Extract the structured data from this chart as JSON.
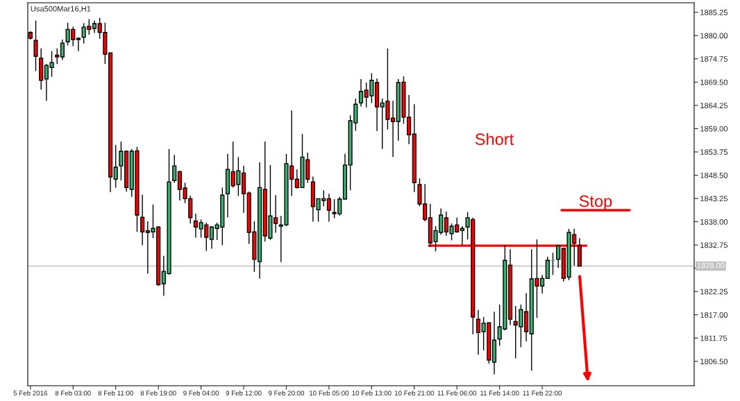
{
  "chart_data": {
    "type": "candlestick",
    "title": "Usa500Mar16,H1",
    "categories": [
      "5 Feb 2016",
      null,
      null,
      null,
      null,
      null,
      null,
      null,
      "8 Feb 03:00",
      null,
      null,
      null,
      null,
      null,
      null,
      null,
      "8 Feb 11:00",
      null,
      null,
      null,
      null,
      null,
      null,
      null,
      "8 Feb 19:00",
      null,
      null,
      null,
      null,
      null,
      null,
      null,
      "9 Feb 04:00",
      null,
      null,
      null,
      null,
      null,
      null,
      null,
      "9 Feb 12:00",
      null,
      null,
      null,
      null,
      null,
      null,
      null,
      "9 Feb 20:00",
      null,
      null,
      null,
      null,
      null,
      null,
      null,
      "10 Feb 05:00",
      null,
      null,
      null,
      null,
      null,
      null,
      null,
      "10 Feb 13:00",
      null,
      null,
      null,
      null,
      null,
      null,
      null,
      "10 Feb 21:00",
      null,
      null,
      null,
      null,
      null,
      null,
      null,
      "11 Feb 06:00",
      null,
      null,
      null,
      null,
      null,
      null,
      null,
      "11 Feb 14:00",
      null,
      null,
      null,
      null,
      null,
      null,
      null,
      "11 Feb 22:00",
      null,
      null,
      null,
      null,
      null,
      null,
      null,
      null,
      null,
      null,
      null,
      null,
      null,
      null,
      null,
      null,
      null,
      null,
      null,
      null,
      null,
      null,
      null,
      null,
      null,
      null,
      null,
      null
    ],
    "ohlc": [
      [
        1880.7,
        1881.0,
        1879.1,
        1879.4
      ],
      [
        1878.9,
        1883.4,
        1872.0,
        1875.3
      ],
      [
        1874.9,
        1877.1,
        1867.8,
        1869.9
      ],
      [
        1870.2,
        1873.6,
        1865.3,
        1873.3
      ],
      [
        1872.8,
        1876.5,
        1870.7,
        1873.9
      ],
      [
        1875.6,
        1877.1,
        1873.6,
        1875.2
      ],
      [
        1875.2,
        1879.1,
        1874.5,
        1878.3
      ],
      [
        1878.6,
        1882.9,
        1877.8,
        1881.4
      ],
      [
        1881.4,
        1882.0,
        1877.6,
        1879.1
      ],
      [
        1879.1,
        1879.6,
        1876.5,
        1879.4
      ],
      [
        1879.6,
        1882.8,
        1878.2,
        1881.9
      ],
      [
        1882.1,
        1883.7,
        1880.2,
        1881.4
      ],
      [
        1881.6,
        1883.4,
        1880.6,
        1882.7
      ],
      [
        1882.7,
        1884.0,
        1879.3,
        1880.7
      ],
      [
        1880.7,
        1882.9,
        1873.6,
        1875.8
      ],
      [
        1876.1,
        1876.1,
        1844.7,
        1848.1
      ],
      [
        1847.6,
        1855.3,
        1845.7,
        1850.3
      ],
      [
        1850.6,
        1856.1,
        1847.3,
        1853.9
      ],
      [
        1853.9,
        1854.0,
        1844.8,
        1845.7
      ],
      [
        1845.3,
        1854.4,
        1843.6,
        1853.9
      ],
      [
        1854.0,
        1854.9,
        1835.7,
        1839.5
      ],
      [
        1839.0,
        1844.1,
        1832.7,
        1835.7
      ],
      [
        1836.0,
        1838.1,
        1826.3,
        1835.6
      ],
      [
        1835.7,
        1841.9,
        1834.3,
        1836.5
      ],
      [
        1836.8,
        1837.0,
        1823.5,
        1823.8
      ],
      [
        1824.0,
        1830.3,
        1821.3,
        1826.8
      ],
      [
        1826.3,
        1854.4,
        1826.0,
        1847.0
      ],
      [
        1847.3,
        1853.1,
        1846.8,
        1850.6
      ],
      [
        1849.3,
        1849.5,
        1842.8,
        1845.3
      ],
      [
        1845.6,
        1846.8,
        1842.2,
        1843.2
      ],
      [
        1843.2,
        1843.9,
        1837.6,
        1838.9
      ],
      [
        1838.2,
        1839.8,
        1834.4,
        1836.8
      ],
      [
        1836.4,
        1838.5,
        1834.4,
        1837.8
      ],
      [
        1837.3,
        1837.8,
        1831.4,
        1834.5
      ],
      [
        1834.0,
        1837.0,
        1831.9,
        1836.8
      ],
      [
        1836.5,
        1837.8,
        1833.9,
        1837.3
      ],
      [
        1836.8,
        1845.7,
        1832.7,
        1844.0
      ],
      [
        1844.3,
        1853.3,
        1839.0,
        1849.8
      ],
      [
        1849.3,
        1856.1,
        1845.7,
        1846.1
      ],
      [
        1846.4,
        1852.6,
        1843.8,
        1849.5
      ],
      [
        1849.0,
        1850.6,
        1840.0,
        1844.3
      ],
      [
        1844.5,
        1844.8,
        1833.0,
        1835.6
      ],
      [
        1835.7,
        1838.1,
        1826.7,
        1829.5
      ],
      [
        1829.0,
        1851.4,
        1825.2,
        1845.7
      ],
      [
        1845.3,
        1856.1,
        1833.5,
        1834.8
      ],
      [
        1834.3,
        1850.8,
        1833.9,
        1839.3
      ],
      [
        1838.9,
        1844.0,
        1835.5,
        1837.6
      ],
      [
        1837.0,
        1839.3,
        1828.9,
        1837.3
      ],
      [
        1837.3,
        1853.3,
        1837.0,
        1851.1
      ],
      [
        1850.6,
        1863.1,
        1843.8,
        1847.6
      ],
      [
        1847.6,
        1849.8,
        1845.5,
        1845.7
      ],
      [
        1845.7,
        1857.8,
        1845.7,
        1852.6
      ],
      [
        1852.0,
        1853.6,
        1846.8,
        1847.6
      ],
      [
        1847.0,
        1848.2,
        1838.0,
        1841.4
      ],
      [
        1840.7,
        1843.2,
        1838.0,
        1843.2
      ],
      [
        1842.8,
        1845.1,
        1841.5,
        1843.2
      ],
      [
        1843.2,
        1844.3,
        1838.0,
        1840.6
      ],
      [
        1840.1,
        1843.1,
        1838.8,
        1839.8
      ],
      [
        1839.8,
        1843.6,
        1839.4,
        1843.1
      ],
      [
        1843.1,
        1853.3,
        1843.1,
        1850.8
      ],
      [
        1850.8,
        1862.0,
        1845.1,
        1860.8
      ],
      [
        1860.3,
        1865.8,
        1858.5,
        1864.5
      ],
      [
        1864.8,
        1870.2,
        1864.0,
        1867.4
      ],
      [
        1867.7,
        1869.4,
        1863.8,
        1866.1
      ],
      [
        1866.4,
        1871.5,
        1864.8,
        1869.9
      ],
      [
        1869.4,
        1870.3,
        1858.5,
        1863.9
      ],
      [
        1863.9,
        1865.8,
        1854.4,
        1864.8
      ],
      [
        1865.2,
        1877.1,
        1858.8,
        1861.1
      ],
      [
        1861.4,
        1865.3,
        1852.6,
        1860.6
      ],
      [
        1860.6,
        1870.2,
        1856.3,
        1869.4
      ],
      [
        1869.5,
        1870.8,
        1860.1,
        1861.6
      ],
      [
        1861.6,
        1866.6,
        1855.5,
        1857.6
      ],
      [
        1857.8,
        1864.5,
        1844.7,
        1846.8
      ],
      [
        1846.4,
        1847.8,
        1841.5,
        1842.0
      ],
      [
        1842.0,
        1846.5,
        1838.1,
        1838.5
      ],
      [
        1838.9,
        1842.0,
        1832.3,
        1833.2
      ],
      [
        1833.5,
        1837.0,
        1831.3,
        1836.0
      ],
      [
        1835.6,
        1841.0,
        1835.1,
        1839.5
      ],
      [
        1838.9,
        1840.3,
        1834.8,
        1835.7
      ],
      [
        1835.3,
        1837.6,
        1833.8,
        1837.0
      ],
      [
        1837.3,
        1838.9,
        1835.5,
        1835.7
      ],
      [
        1836.0,
        1837.0,
        1832.7,
        1836.5
      ],
      [
        1836.8,
        1840.2,
        1834.0,
        1838.9
      ],
      [
        1838.5,
        1838.9,
        1812.6,
        1816.5
      ],
      [
        1816.0,
        1818.1,
        1808.0,
        1813.0
      ],
      [
        1813.2,
        1816.5,
        1809.0,
        1815.1
      ],
      [
        1815.2,
        1815.2,
        1806.0,
        1806.8
      ],
      [
        1806.3,
        1817.7,
        1803.6,
        1811.3
      ],
      [
        1811.5,
        1819.3,
        1810.0,
        1814.3
      ],
      [
        1813.8,
        1832.7,
        1813.5,
        1829.3
      ],
      [
        1828.2,
        1831.8,
        1814.7,
        1816.0
      ],
      [
        1815.5,
        1819.0,
        1807.2,
        1814.7
      ],
      [
        1814.3,
        1819.3,
        1809.7,
        1818.2
      ],
      [
        1817.7,
        1821.9,
        1811.0,
        1813.2
      ],
      [
        1812.7,
        1831.8,
        1804.4,
        1825.1
      ],
      [
        1825.2,
        1834.0,
        1816.3,
        1823.5
      ],
      [
        1823.5,
        1826.0,
        1821.8,
        1825.2
      ],
      [
        1825.2,
        1830.1,
        1825.2,
        1829.3
      ],
      [
        1829.3,
        1831.0,
        1826.0,
        1829.3
      ],
      [
        1829.5,
        1832.7,
        1827.6,
        1832.6
      ],
      [
        1832.0,
        1832.0,
        1824.5,
        1825.2
      ],
      [
        1825.5,
        1836.4,
        1824.8,
        1835.6
      ],
      [
        1835.1,
        1836.4,
        1828.1,
        1833.1
      ],
      [
        1832.6,
        1834.3,
        1828.0,
        1828.0
      ],
      null,
      null,
      null,
      null,
      null,
      null,
      null,
      null,
      null,
      null,
      null,
      null,
      null,
      null,
      null,
      null,
      null,
      null,
      null,
      null,
      null
    ],
    "colors": [
      "#ff0000",
      "#ff0000",
      "#ff0000",
      "#3cb371",
      "#3cb371",
      "#ff0000",
      "#3cb371",
      "#3cb371",
      "#ff0000",
      "#3cb371",
      "#3cb371",
      "#ff0000",
      "#3cb371",
      "#ff0000",
      "#ff0000",
      "#ff0000",
      "#3cb371",
      "#3cb371",
      "#ff0000",
      "#3cb371",
      "#ff0000",
      "#ff0000",
      "#ff0000",
      "#3cb371",
      "#ff0000",
      "#3cb371",
      "#3cb371",
      "#3cb371",
      "#ff0000",
      "#ff0000",
      "#ff0000",
      "#ff0000",
      "#3cb371",
      "#ff0000",
      "#3cb371",
      "#3cb371",
      "#3cb371",
      "#3cb371",
      "#ff0000",
      "#3cb371",
      "#ff0000",
      "#ff0000",
      "#ff0000",
      "#3cb371",
      "#ff0000",
      "#3cb371",
      "#ff0000",
      "#3cb371",
      "#3cb371",
      "#ff0000",
      "#ff0000",
      "#3cb371",
      "#ff0000",
      "#ff0000",
      "#3cb371",
      "#3cb371",
      "#ff0000",
      "#ff0000",
      "#3cb371",
      "#3cb371",
      "#3cb371",
      "#3cb371",
      "#3cb371",
      "#ff0000",
      "#3cb371",
      "#ff0000",
      "#3cb371",
      "#ff0000",
      "#ff0000",
      "#3cb371",
      "#ff0000",
      "#ff0000",
      "#ff0000",
      "#ff0000",
      "#ff0000",
      "#ff0000",
      "#3cb371",
      "#3cb371",
      "#ff0000",
      "#3cb371",
      "#ff0000",
      "#3cb371",
      "#3cb371",
      "#ff0000",
      "#ff0000",
      "#3cb371",
      "#ff0000",
      "#3cb371",
      "#3cb371",
      "#3cb371",
      "#ff0000",
      "#ff0000",
      "#3cb371",
      "#ff0000",
      "#3cb371",
      "#ff0000",
      "#3cb371",
      "#3cb371",
      "#3cb371",
      "#3cb371",
      "#ff0000",
      "#3cb371",
      "#ff0000",
      "#ff0000",
      null,
      null,
      null,
      null,
      null,
      null,
      null,
      null,
      null,
      null,
      null,
      null,
      null,
      null,
      null,
      null,
      null,
      null,
      null,
      null,
      null
    ],
    "ylim": [
      1801.0,
      1887.4
    ],
    "yticks": [
      {
        "value": 1885.25,
        "label": "1885.25"
      },
      {
        "value": 1880.0,
        "label": "1880.00"
      },
      {
        "value": 1874.75,
        "label": "1874.75"
      },
      {
        "value": 1869.5,
        "label": "1869.50"
      },
      {
        "value": 1864.25,
        "label": "1864.25"
      },
      {
        "value": 1859.0,
        "label": "1859.00"
      },
      {
        "value": 1853.75,
        "label": "1853.75"
      },
      {
        "value": 1848.5,
        "label": "1848.50"
      },
      {
        "value": 1843.25,
        "label": "1843.25"
      },
      {
        "value": 1838.0,
        "label": "1838.00"
      },
      {
        "value": 1832.75,
        "label": "1832.75"
      },
      {
        "value": 1827.5,
        "label": null
      },
      {
        "value": 1822.25,
        "label": "1822.25"
      },
      {
        "value": 1817.0,
        "label": "1817.00"
      },
      {
        "value": 1811.75,
        "label": "1811.75"
      },
      {
        "value": 1806.5,
        "label": "1806.50"
      }
    ],
    "ref_lines": [
      {
        "axis": "y",
        "value": 1828.0,
        "label": "1828.00",
        "color": "#c0c0c0"
      },
      {
        "axis": "y",
        "value": 1832.6,
        "color": "#ff0000"
      },
      {
        "axis": "y",
        "value": 1840.6,
        "label": "Stop",
        "color": "#ff0000"
      }
    ],
    "annotations": [
      "Short"
    ]
  }
}
